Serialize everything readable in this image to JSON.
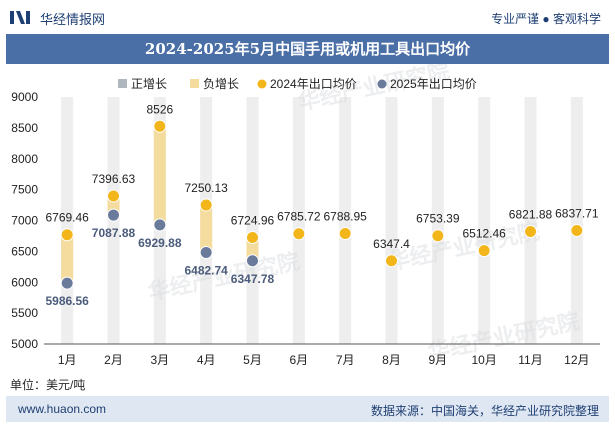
{
  "header": {
    "brand": "华经情报网",
    "slogan": "专业严谨 ● 客观科学"
  },
  "title": "2024-2025年5月中国手用或机用工具出口均价",
  "unit_label": "单位：美元/吨",
  "watermark": "华经产业研究院",
  "footer": {
    "url": "www.huaon.com",
    "source": "数据来源：中国海关，华经产业研究院整理"
  },
  "colors": {
    "header_bg": "#4a6ea6",
    "footer_bg": "#dfe7f2",
    "bar": "#eeeeee",
    "positive_legend": "#b0b6bd",
    "negative_legend": "#f4dc9f",
    "series_2024": "#f2b51a",
    "series_2025": "#6a7a9b"
  },
  "chart_data": {
    "type": "line",
    "categories": [
      "1月",
      "2月",
      "3月",
      "4月",
      "5月",
      "6月",
      "7月",
      "8月",
      "9月",
      "10月",
      "11月",
      "12月"
    ],
    "ylim": [
      5000,
      9000
    ],
    "yticks": [
      5000,
      5500,
      6000,
      6500,
      7000,
      7500,
      8000,
      8500,
      9000
    ],
    "legend": [
      "正增长",
      "负增长",
      "2024年出口均价",
      "2025年出口均价"
    ],
    "legend_position": "top",
    "series": [
      {
        "name": "2024年出口均价",
        "values": [
          6769.46,
          7396.63,
          8526,
          7250.13,
          6724.96,
          6785.72,
          6788.95,
          6347.4,
          6753.39,
          6512.46,
          6821.88,
          6837.71
        ]
      },
      {
        "name": "2025年出口均价",
        "values": [
          5986.56,
          7087.88,
          6929.88,
          6482.74,
          6347.78,
          null,
          null,
          null,
          null,
          null,
          null,
          null
        ]
      }
    ],
    "labels_2024": [
      "6769.46",
      "7396.63",
      "8526",
      "7250.13",
      "6724.96",
      "6785.72",
      "6788.95",
      "6347.4",
      "6753.39",
      "6512.46",
      "6821.88",
      "6837.71"
    ],
    "labels_2025": [
      "5986.56",
      "7087.88",
      "6929.88",
      "6482.74",
      "6347.78"
    ]
  }
}
